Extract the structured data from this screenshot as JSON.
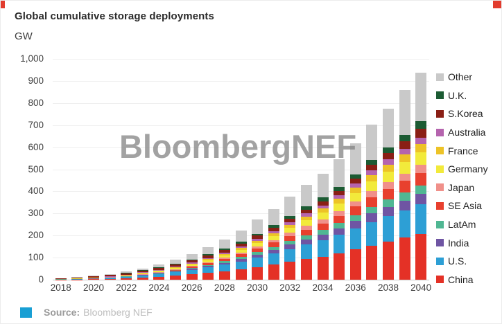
{
  "header": {
    "title": "Global cumulative storage deployments",
    "unit": "GW"
  },
  "watermark": "BloombergNEF",
  "footer": {
    "source_label": "Source:",
    "source_value": "Bloomberg NEF"
  },
  "legend": {
    "position": "right",
    "items": [
      {
        "label": "Other",
        "color": "#c9c9c9"
      },
      {
        "label": "U.K.",
        "color": "#1c5b33"
      },
      {
        "label": "S.Korea",
        "color": "#8a1f15"
      },
      {
        "label": "Australia",
        "color": "#b564ae"
      },
      {
        "label": "France",
        "color": "#edc327"
      },
      {
        "label": "Germany",
        "color": "#f2ea3b"
      },
      {
        "label": "Japan",
        "color": "#f0908a"
      },
      {
        "label": "SE Asia",
        "color": "#e8402e"
      },
      {
        "label": "LatAm",
        "color": "#50b793"
      },
      {
        "label": "India",
        "color": "#6f55a3"
      },
      {
        "label": "U.S.",
        "color": "#2d9fd5"
      },
      {
        "label": "China",
        "color": "#e43126"
      }
    ]
  },
  "chart_data": {
    "type": "bar",
    "stacked": true,
    "title": "Global cumulative storage deployments",
    "ylabel": "GW",
    "xlabel": "",
    "ylim": [
      0,
      1000
    ],
    "ytick_labels": [
      "0",
      "100",
      "200",
      "300",
      "400",
      "500",
      "600",
      "700",
      "800",
      "900",
      "1,000"
    ],
    "xtick_labels": [
      "2018",
      "2020",
      "2022",
      "2024",
      "2026",
      "2028",
      "2030",
      "2032",
      "2034",
      "2036",
      "2038",
      "2040"
    ],
    "grid": "horizontal",
    "legend_position": "right",
    "categories": [
      2018,
      2019,
      2020,
      2021,
      2022,
      2023,
      2024,
      2025,
      2026,
      2027,
      2028,
      2029,
      2030,
      2031,
      2032,
      2033,
      2034,
      2035,
      2036,
      2037,
      2038,
      2039,
      2040
    ],
    "series_order": "bottom-to-top",
    "series": [
      {
        "name": "China",
        "color": "#e43126",
        "values": [
          0.5,
          1,
          2,
          3.5,
          6,
          9,
          13,
          18,
          24,
          31,
          39,
          48,
          58,
          69,
          81,
          94,
          105,
          120,
          137,
          155,
          171,
          190,
          208
        ]
      },
      {
        "name": "U.S.",
        "color": "#2d9fd5",
        "values": [
          1,
          1.6,
          2.6,
          4.5,
          7,
          10,
          13,
          16,
          20,
          24,
          29,
          35,
          42,
          50,
          58,
          66,
          74,
          83,
          94,
          106,
          116,
          124,
          135
        ]
      },
      {
        "name": "India",
        "color": "#6f55a3",
        "values": [
          0.1,
          0.2,
          0.3,
          0.5,
          0.9,
          1.5,
          2.3,
          3.4,
          4.8,
          6.5,
          8.5,
          11,
          14,
          17,
          20,
          23,
          26,
          30,
          34,
          39,
          43,
          45,
          47
        ]
      },
      {
        "name": "LatAm",
        "color": "#50b793",
        "values": [
          0.1,
          0.2,
          0.3,
          0.5,
          0.8,
          1.3,
          2,
          3,
          4.2,
          5.6,
          7.2,
          9,
          11,
          13,
          16,
          18,
          20,
          23,
          27,
          30,
          33,
          35,
          37
        ]
      },
      {
        "name": "SE Asia",
        "color": "#e8402e",
        "values": [
          0.1,
          0.2,
          0.4,
          0.7,
          1.1,
          1.7,
          2.5,
          3.6,
          5.2,
          7.3,
          9.6,
          12,
          16,
          19,
          23,
          26,
          30,
          34,
          39,
          44,
          49,
          53,
          57
        ]
      },
      {
        "name": "Japan",
        "color": "#f0908a",
        "values": [
          1,
          1.4,
          1.8,
          2.2,
          2.6,
          3,
          3.4,
          4,
          4.7,
          5.6,
          6.8,
          8.3,
          10,
          12,
          14,
          17,
          19,
          21,
          24,
          28,
          31,
          34,
          37
        ]
      },
      {
        "name": "Germany",
        "color": "#f2ea3b",
        "values": [
          0.5,
          0.8,
          1.1,
          1.5,
          2.1,
          2.8,
          3.6,
          4.8,
          6.3,
          8.1,
          10,
          13,
          16,
          19,
          22,
          25,
          29,
          33,
          37,
          42,
          47,
          52,
          57
        ]
      },
      {
        "name": "France",
        "color": "#edc327",
        "values": [
          0.2,
          0.3,
          0.5,
          0.8,
          1.2,
          1.7,
          2.3,
          3.1,
          4.1,
          5.3,
          6.7,
          8.4,
          10,
          12,
          15,
          17,
          19,
          22,
          25,
          29,
          32,
          34,
          37
        ]
      },
      {
        "name": "Australia",
        "color": "#b564ae",
        "values": [
          0.3,
          0.6,
          0.9,
          1.3,
          1.8,
          2.4,
          3,
          3.7,
          4.4,
          5.2,
          6.1,
          7.2,
          8.5,
          10,
          12,
          14,
          15,
          17,
          19,
          22,
          24,
          27,
          29
        ]
      },
      {
        "name": "S.Korea",
        "color": "#8a1f15",
        "values": [
          2.2,
          3.4,
          4.6,
          5.5,
          6.5,
          7.5,
          8.5,
          9.5,
          10,
          11,
          12,
          13,
          14,
          15,
          16,
          17,
          19,
          20,
          22,
          25,
          28,
          33,
          39
        ]
      },
      {
        "name": "U.K.",
        "color": "#1c5b33",
        "values": [
          0.5,
          0.9,
          1.3,
          1.8,
          2.4,
          3.1,
          3.8,
          4.4,
          5.1,
          5.9,
          6.8,
          7.9,
          9.1,
          10.5,
          12,
          14,
          16,
          17,
          19,
          22,
          24,
          28,
          36
        ]
      },
      {
        "name": "Other",
        "color": "#c9c9c9",
        "values": [
          0.5,
          1.4,
          2.2,
          3.2,
          4.6,
          7,
          10.6,
          16.5,
          24,
          31.5,
          40,
          51,
          63,
          74,
          87,
          99,
          109,
          125,
          142,
          159,
          176,
          204,
          219
        ]
      }
    ]
  }
}
